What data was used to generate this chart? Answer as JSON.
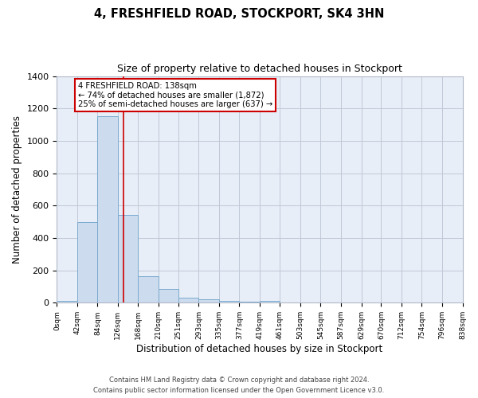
{
  "title": "4, FRESHFIELD ROAD, STOCKPORT, SK4 3HN",
  "subtitle": "Size of property relative to detached houses in Stockport",
  "xlabel": "Distribution of detached houses by size in Stockport",
  "ylabel": "Number of detached properties",
  "bar_color": "#ccdcee",
  "bar_edge_color": "#7aaace",
  "background_color": "#e8eef7",
  "fig_background_color": "#ffffff",
  "grid_color": "#c0c8d8",
  "red_line_x": 138,
  "annotation_title": "4 FRESHFIELD ROAD: 138sqm",
  "annotation_line1": "← 74% of detached houses are smaller (1,872)",
  "annotation_line2": "25% of semi-detached houses are larger (637) →",
  "annotation_box_color": "#ffffff",
  "annotation_border_color": "#cc0000",
  "red_line_color": "#cc0000",
  "bin_edges": [
    0,
    42,
    84,
    126,
    168,
    210,
    251,
    293,
    335,
    377,
    419,
    461,
    503,
    545,
    587,
    629,
    670,
    712,
    754,
    796,
    838
  ],
  "bar_heights": [
    10,
    500,
    1150,
    540,
    165,
    85,
    30,
    20,
    10,
    5,
    10,
    0,
    0,
    0,
    0,
    0,
    0,
    0,
    0,
    0
  ],
  "ylim": [
    0,
    1400
  ],
  "yticks": [
    0,
    200,
    400,
    600,
    800,
    1000,
    1200,
    1400
  ],
  "footer_line1": "Contains HM Land Registry data © Crown copyright and database right 2024.",
  "footer_line2": "Contains public sector information licensed under the Open Government Licence v3.0."
}
